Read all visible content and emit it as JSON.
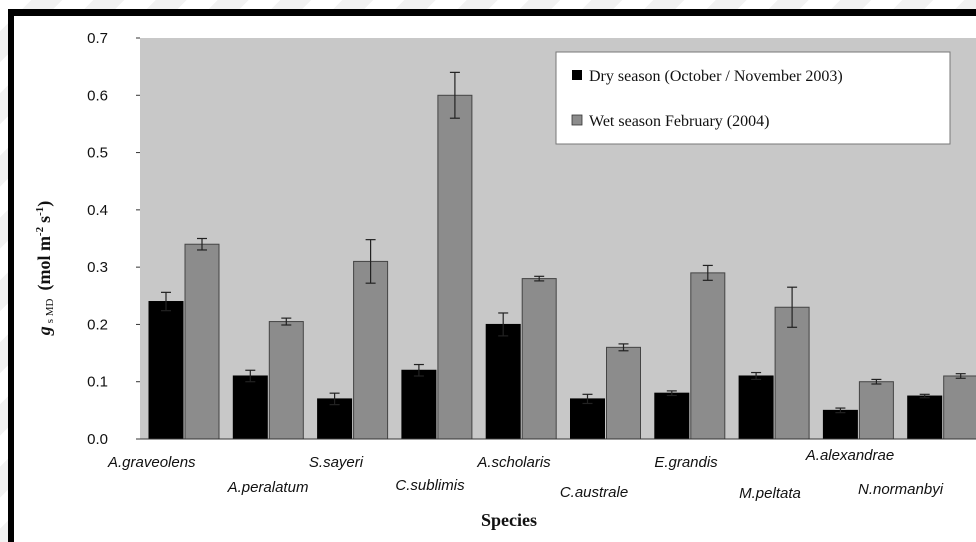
{
  "chart_data": {
    "type": "bar",
    "xlabel": "Species",
    "ylabel_main": "g",
    "ylabel_sub": "s MD",
    "ylabel_units": "(mol m",
    "ylim": [
      0,
      0.7
    ],
    "yticks": [
      "0.0",
      "0.1",
      "0.2",
      "0.3",
      "0.4",
      "0.5",
      "0.6",
      "0.7"
    ],
    "grid": false,
    "legend_position": "top-right",
    "categories": [
      "A.graveolens",
      "A.peralatum",
      "S.sayeri",
      "C.sublimis",
      "A.scholaris",
      "C.australe",
      "E.grandis",
      "M.peltata",
      "A.alexandrae",
      "N.normanbyi"
    ],
    "series": [
      {
        "name": "Dry season (October / November 2003)",
        "color": "#000000",
        "values": [
          0.24,
          0.11,
          0.07,
          0.12,
          0.2,
          0.07,
          0.08,
          0.11,
          0.05,
          0.075
        ],
        "errors": [
          0.016,
          0.01,
          0.01,
          0.01,
          0.02,
          0.008,
          0.004,
          0.006,
          0.004,
          0.003
        ]
      },
      {
        "name": "Wet season February (2004)",
        "color": "#8c8c8c",
        "values": [
          0.34,
          0.205,
          0.31,
          0.6,
          0.28,
          0.16,
          0.29,
          0.23,
          0.1,
          0.11
        ],
        "errors": [
          0.01,
          0.006,
          0.038,
          0.04,
          0.004,
          0.006,
          0.013,
          0.035,
          0.004,
          0.004
        ]
      }
    ]
  }
}
